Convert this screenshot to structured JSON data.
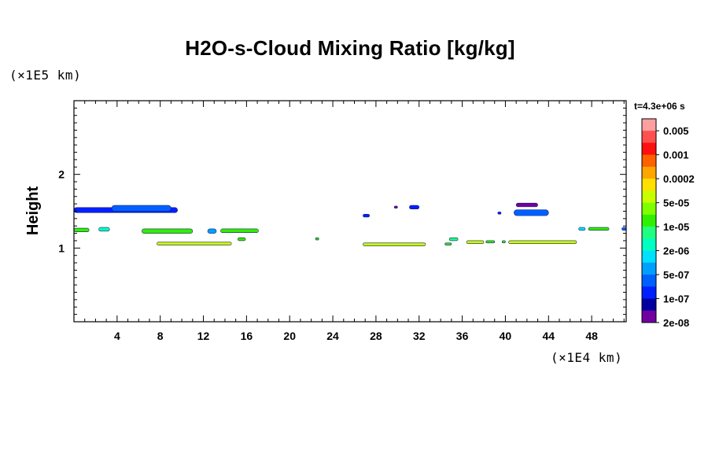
{
  "chart_data": {
    "type": "heatmap",
    "title": "H2O-s-Cloud Mixing Ratio [kg/kg]",
    "ylabel": "Height",
    "y_unit": "(×1E5 km)",
    "x_unit": "(×1E4 km)",
    "time_label": "t=4.3e+06 s",
    "x_ticks": [
      "4",
      "8",
      "12",
      "16",
      "20",
      "24",
      "28",
      "32",
      "36",
      "40",
      "44",
      "48"
    ],
    "y_ticks": [
      "1",
      "2"
    ],
    "xlim": [
      0,
      51.2
    ],
    "ylim": [
      0,
      3.0
    ],
    "grid": false,
    "legend": {
      "placement": "right",
      "labels": [
        "0.005",
        "0.001",
        "0.0002",
        "5e-05",
        "1e-05",
        "2e-06",
        "5e-07",
        "1e-07",
        "2e-08"
      ],
      "colors": [
        "#ffa0a0",
        "#ff5050",
        "#ff1010",
        "#ff6000",
        "#ffa500",
        "#ffe000",
        "#c8ff00",
        "#80ff00",
        "#30f000",
        "#20ff80",
        "#00ffc0",
        "#00e0ff",
        "#00a0ff",
        "#0060ff",
        "#0020ff",
        "#0000a0",
        "#7000a0"
      ]
    },
    "regions": [
      {
        "x0": 0.0,
        "x1": 9.6,
        "y0": 1.48,
        "y1": 1.55,
        "color": "#0020ff",
        "label": "1e-07"
      },
      {
        "x0": 3.5,
        "x1": 9.0,
        "y0": 1.5,
        "y1": 1.58,
        "color": "#0060ff",
        "label": "1e-07"
      },
      {
        "x0": 0.0,
        "x1": 1.4,
        "y0": 1.22,
        "y1": 1.27,
        "color": "#30f000",
        "label": "2e-06"
      },
      {
        "x0": 2.3,
        "x1": 3.3,
        "y0": 1.23,
        "y1": 1.28,
        "color": "#00ffc0",
        "label": "5e-07"
      },
      {
        "x0": 6.3,
        "x1": 11.0,
        "y0": 1.2,
        "y1": 1.26,
        "color": "#30f000",
        "label": "2e-06"
      },
      {
        "x0": 12.4,
        "x1": 13.2,
        "y0": 1.2,
        "y1": 1.26,
        "color": "#00a0ff",
        "label": "1e-07"
      },
      {
        "x0": 13.6,
        "x1": 17.1,
        "y0": 1.21,
        "y1": 1.26,
        "color": "#30f000",
        "label": "2e-06"
      },
      {
        "x0": 7.7,
        "x1": 14.6,
        "y0": 1.04,
        "y1": 1.08,
        "color": "#c8ff00",
        "label": "5e-05"
      },
      {
        "x0": 15.2,
        "x1": 15.9,
        "y0": 1.1,
        "y1": 1.14,
        "color": "#30f000",
        "label": "2e-06"
      },
      {
        "x0": 22.4,
        "x1": 22.7,
        "y0": 1.11,
        "y1": 1.14,
        "color": "#30f000",
        "label": "2e-06"
      },
      {
        "x0": 26.8,
        "x1": 27.4,
        "y0": 1.42,
        "y1": 1.46,
        "color": "#0020ff",
        "label": "1e-07"
      },
      {
        "x0": 31.1,
        "x1": 32.0,
        "y0": 1.53,
        "y1": 1.58,
        "color": "#0020ff",
        "label": "1e-07"
      },
      {
        "x0": 29.7,
        "x1": 30.0,
        "y0": 1.54,
        "y1": 1.57,
        "color": "#7000a0",
        "label": "2e-08"
      },
      {
        "x0": 26.8,
        "x1": 32.6,
        "y0": 1.03,
        "y1": 1.07,
        "color": "#c8ff00",
        "label": "5e-05"
      },
      {
        "x0": 34.4,
        "x1": 35.0,
        "y0": 1.04,
        "y1": 1.07,
        "color": "#30f000",
        "label": "2e-06"
      },
      {
        "x0": 34.8,
        "x1": 35.6,
        "y0": 1.1,
        "y1": 1.14,
        "color": "#20ff80",
        "label": "2e-06"
      },
      {
        "x0": 36.4,
        "x1": 38.0,
        "y0": 1.06,
        "y1": 1.1,
        "color": "#c8ff00",
        "label": "5e-05"
      },
      {
        "x0": 38.2,
        "x1": 39.0,
        "y0": 1.07,
        "y1": 1.1,
        "color": "#30f000",
        "label": "2e-06"
      },
      {
        "x0": 39.7,
        "x1": 40.0,
        "y0": 1.07,
        "y1": 1.1,
        "color": "#30f000",
        "label": "2e-06"
      },
      {
        "x0": 40.3,
        "x1": 46.6,
        "y0": 1.06,
        "y1": 1.1,
        "color": "#c8ff00",
        "label": "5e-05"
      },
      {
        "x0": 41.0,
        "x1": 43.0,
        "y0": 1.56,
        "y1": 1.61,
        "color": "#7000a0",
        "label": "2e-08"
      },
      {
        "x0": 40.8,
        "x1": 44.0,
        "y0": 1.44,
        "y1": 1.52,
        "color": "#0060ff",
        "label": "1e-07"
      },
      {
        "x0": 39.3,
        "x1": 39.6,
        "y0": 1.46,
        "y1": 1.49,
        "color": "#0020ff",
        "label": "1e-07"
      },
      {
        "x0": 46.8,
        "x1": 47.4,
        "y0": 1.24,
        "y1": 1.28,
        "color": "#00e0ff",
        "label": "5e-07"
      },
      {
        "x0": 47.7,
        "x1": 49.6,
        "y0": 1.24,
        "y1": 1.28,
        "color": "#30f000",
        "label": "2e-06"
      },
      {
        "x0": 50.8,
        "x1": 51.2,
        "y0": 1.24,
        "y1": 1.28,
        "color": "#0060ff",
        "label": "1e-07"
      }
    ]
  }
}
